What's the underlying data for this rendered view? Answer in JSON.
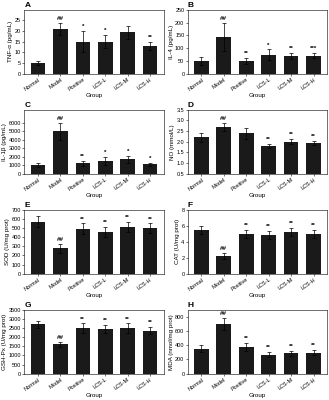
{
  "chart_data": [
    {
      "type": "bar",
      "title": "A",
      "xlabel": "Group",
      "ylabel": "TNF-α (pg/mL)",
      "categories": [
        "Normal",
        "Model",
        "Positive",
        "LCS-L",
        "LCS-M",
        "LCS-H"
      ],
      "values": [
        5,
        21,
        15,
        15,
        19.5,
        13
      ],
      "errors": [
        1.0,
        3.0,
        5.0,
        3.0,
        3.0,
        2.0
      ],
      "annotations": [
        null,
        "##",
        "*",
        "*",
        null,
        "**"
      ],
      "color": "#1a1a1a",
      "ylim": [
        0,
        30
      ],
      "yticks": [
        0,
        5,
        10,
        15,
        20,
        25
      ]
    },
    {
      "type": "bar",
      "title": "B",
      "xlabel": "Group",
      "ylabel": "IL-4 (pg/mL)",
      "categories": [
        "Normal",
        "Model",
        "Positive",
        "LCS-L",
        "LCS-M",
        "LCS-H"
      ],
      "values": [
        50,
        145,
        50,
        75,
        68,
        70
      ],
      "errors": [
        15,
        55,
        12,
        20,
        12,
        10
      ],
      "annotations": [
        null,
        "##",
        "**",
        "*",
        "**",
        "***"
      ],
      "color": "#1a1a1a",
      "ylim": [
        0,
        250
      ],
      "yticks": [
        0,
        50,
        100,
        150,
        200,
        250
      ]
    },
    {
      "type": "bar",
      "title": "C",
      "xlabel": "Group",
      "ylabel": "IL-1β (pg/mL)",
      "categories": [
        "Normal",
        "Model",
        "Positive",
        "LCS-L",
        "LCS-M",
        "LCS-H"
      ],
      "values": [
        1000,
        5000,
        1200,
        1500,
        1700,
        1100
      ],
      "errors": [
        200,
        1000,
        300,
        500,
        400,
        200
      ],
      "annotations": [
        null,
        "##",
        "**",
        "*",
        "*",
        "*"
      ],
      "color": "#1a1a1a",
      "ylim": [
        0,
        7500
      ],
      "yticks": [
        0,
        1000,
        2000,
        3000,
        4000,
        5000,
        6000
      ]
    },
    {
      "type": "bar",
      "title": "D",
      "xlabel": "Group",
      "ylabel": "NO (mmol/L)",
      "categories": [
        "Normal",
        "Model",
        "Positive",
        "LCS-L",
        "LCS-M",
        "LCS-H"
      ],
      "values": [
        2.2,
        2.7,
        2.4,
        1.8,
        2.0,
        1.95
      ],
      "errors": [
        0.2,
        0.18,
        0.25,
        0.1,
        0.12,
        0.1
      ],
      "annotations": [
        null,
        "##",
        null,
        "**",
        "**",
        "**"
      ],
      "color": "#1a1a1a",
      "ylim": [
        0.5,
        3.5
      ],
      "yticks": [
        0.5,
        1.0,
        1.5,
        2.0,
        2.5,
        3.0,
        3.5
      ]
    },
    {
      "type": "bar",
      "title": "E",
      "xlabel": "Group",
      "ylabel": "SOD (U/mg prot)",
      "categories": [
        "Normal",
        "Model",
        "Positive",
        "LCS-L",
        "LCS-M",
        "LCS-H"
      ],
      "values": [
        570,
        280,
        490,
        460,
        510,
        500
      ],
      "errors": [
        60,
        50,
        60,
        55,
        55,
        50
      ],
      "annotations": [
        null,
        "##",
        "**",
        "**",
        "**",
        "**"
      ],
      "color": "#1a1a1a",
      "ylim": [
        0,
        700
      ],
      "yticks": [
        0,
        100,
        200,
        300,
        400,
        500,
        600,
        700
      ]
    },
    {
      "type": "bar",
      "title": "F",
      "xlabel": "Group",
      "ylabel": "CAT (U/mg prot)",
      "categories": [
        "Normal",
        "Model",
        "Positive",
        "LCS-L",
        "LCS-M",
        "LCS-H"
      ],
      "values": [
        5.5,
        2.2,
        5.0,
        4.8,
        5.2,
        5.0
      ],
      "errors": [
        0.5,
        0.35,
        0.5,
        0.5,
        0.5,
        0.5
      ],
      "annotations": [
        null,
        "##",
        "**",
        "**",
        "**",
        "**"
      ],
      "color": "#1a1a1a",
      "ylim": [
        0,
        8
      ],
      "yticks": [
        0,
        2,
        4,
        6,
        8
      ]
    },
    {
      "type": "bar",
      "title": "G",
      "xlabel": "Group",
      "ylabel": "GSH-Px (U/mg prot)",
      "categories": [
        "Normal",
        "Model",
        "Positive",
        "LCS-L",
        "LCS-M",
        "LCS-H"
      ],
      "values": [
        2700,
        1600,
        2500,
        2450,
        2500,
        2350
      ],
      "errors": [
        200,
        150,
        250,
        200,
        250,
        200
      ],
      "annotations": [
        null,
        "##",
        "**",
        "**",
        "**",
        "**"
      ],
      "color": "#1a1a1a",
      "ylim": [
        0,
        3500
      ],
      "yticks": [
        0,
        500,
        1000,
        1500,
        2000,
        2500,
        3000,
        3500
      ]
    },
    {
      "type": "bar",
      "title": "H",
      "xlabel": "Group",
      "ylabel": "MDA (nmol/mg prot)",
      "categories": [
        "Normal",
        "Model",
        "Positive",
        "LCS-L",
        "LCS-M",
        "LCS-H"
      ],
      "values": [
        350,
        700,
        380,
        270,
        290,
        295
      ],
      "errors": [
        50,
        80,
        55,
        35,
        35,
        35
      ],
      "annotations": [
        null,
        "##",
        "**",
        "**",
        "**",
        "**"
      ],
      "color": "#1a1a1a",
      "ylim": [
        0,
        900
      ],
      "yticks": [
        0,
        200,
        400,
        600,
        800
      ]
    }
  ]
}
